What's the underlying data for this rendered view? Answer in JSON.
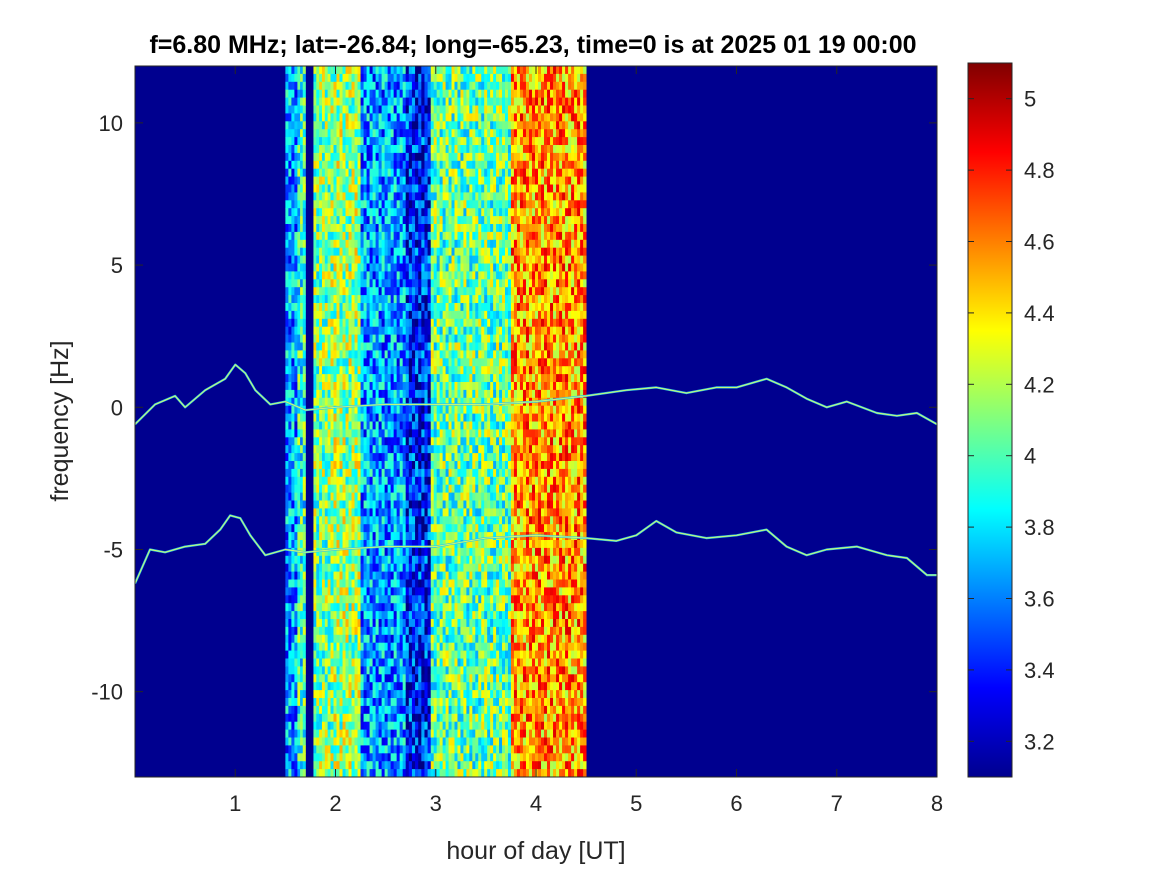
{
  "chart_data": {
    "type": "heatmap",
    "title": "f=6.80 MHz;  lat=-26.84; long=-65.23, time=0 is at 2025 01 19 00:00",
    "xlabel": "hour of day [UT]",
    "ylabel": "frequency [Hz]",
    "xlim": [
      0,
      8
    ],
    "ylim": [
      -13,
      12
    ],
    "xticks": [
      1,
      2,
      3,
      4,
      5,
      6,
      7,
      8
    ],
    "xtick_labels": [
      "1",
      "2",
      "3",
      "4",
      "5",
      "6",
      "7",
      "8"
    ],
    "yticks": [
      10,
      5,
      0,
      -5,
      -10
    ],
    "ytick_labels": [
      "10",
      "5",
      "0",
      "-5",
      "-10"
    ],
    "colormap": "jet",
    "colorbar": {
      "clim": [
        3.1,
        5.1
      ],
      "ticks": [
        5,
        4.8,
        4.6,
        4.4,
        4.2,
        4,
        3.8,
        3.6,
        3.4,
        3.2
      ],
      "tick_labels": [
        "5",
        "4.8",
        "4.6",
        "4.4",
        "4.2",
        "4",
        "3.8",
        "3.6",
        "3.4",
        "3.2"
      ]
    },
    "background_level": 3.15,
    "broadband_bands": [
      {
        "x_start": 1.5,
        "x_end": 1.62,
        "level": 3.65
      },
      {
        "x_start": 1.62,
        "x_end": 1.7,
        "level": 3.95
      },
      {
        "x_start": 1.78,
        "x_end": 1.95,
        "level": 4.1
      },
      {
        "x_start": 1.95,
        "x_end": 2.25,
        "level": 4.15
      },
      {
        "x_start": 2.25,
        "x_end": 2.7,
        "level": 3.65
      },
      {
        "x_start": 2.7,
        "x_end": 2.95,
        "level": 3.4
      },
      {
        "x_start": 2.95,
        "x_end": 3.75,
        "level": 4.05
      },
      {
        "x_start": 3.75,
        "x_end": 4.5,
        "level": 4.55
      }
    ],
    "doppler_traces": [
      {
        "name": "",
        "points": [
          [
            0.0,
            -0.6
          ],
          [
            0.2,
            0.1
          ],
          [
            0.4,
            0.4
          ],
          [
            0.5,
            0.0
          ],
          [
            0.7,
            0.6
          ],
          [
            0.9,
            1.0
          ],
          [
            1.0,
            1.5
          ],
          [
            1.1,
            1.2
          ],
          [
            1.2,
            0.6
          ],
          [
            1.35,
            0.1
          ],
          [
            1.5,
            0.2
          ],
          [
            1.7,
            -0.1
          ],
          [
            2.0,
            0.0
          ],
          [
            2.5,
            0.1
          ],
          [
            3.0,
            0.1
          ],
          [
            3.5,
            0.1
          ],
          [
            4.0,
            0.2
          ],
          [
            4.5,
            0.4
          ],
          [
            4.9,
            0.6
          ],
          [
            5.2,
            0.7
          ],
          [
            5.5,
            0.5
          ],
          [
            5.8,
            0.7
          ],
          [
            6.0,
            0.7
          ],
          [
            6.3,
            1.0
          ],
          [
            6.5,
            0.7
          ],
          [
            6.7,
            0.3
          ],
          [
            6.9,
            0.0
          ],
          [
            7.1,
            0.2
          ],
          [
            7.4,
            -0.2
          ],
          [
            7.6,
            -0.3
          ],
          [
            7.8,
            -0.2
          ],
          [
            8.0,
            -0.6
          ]
        ]
      },
      {
        "name": "",
        "points": [
          [
            0.0,
            -6.2
          ],
          [
            0.15,
            -5.0
          ],
          [
            0.3,
            -5.1
          ],
          [
            0.5,
            -4.9
          ],
          [
            0.7,
            -4.8
          ],
          [
            0.85,
            -4.3
          ],
          [
            0.95,
            -3.8
          ],
          [
            1.05,
            -3.9
          ],
          [
            1.15,
            -4.5
          ],
          [
            1.3,
            -5.2
          ],
          [
            1.5,
            -5.0
          ],
          [
            1.7,
            -5.1
          ],
          [
            2.0,
            -5.0
          ],
          [
            2.5,
            -4.9
          ],
          [
            3.0,
            -4.9
          ],
          [
            3.5,
            -4.6
          ],
          [
            4.0,
            -4.5
          ],
          [
            4.5,
            -4.6
          ],
          [
            4.8,
            -4.7
          ],
          [
            5.0,
            -4.5
          ],
          [
            5.2,
            -4.0
          ],
          [
            5.4,
            -4.4
          ],
          [
            5.7,
            -4.6
          ],
          [
            6.0,
            -4.5
          ],
          [
            6.3,
            -4.3
          ],
          [
            6.5,
            -4.9
          ],
          [
            6.7,
            -5.2
          ],
          [
            6.9,
            -5.0
          ],
          [
            7.2,
            -4.9
          ],
          [
            7.5,
            -5.2
          ],
          [
            7.7,
            -5.3
          ],
          [
            7.9,
            -5.9
          ],
          [
            8.0,
            -5.9
          ]
        ]
      }
    ]
  }
}
